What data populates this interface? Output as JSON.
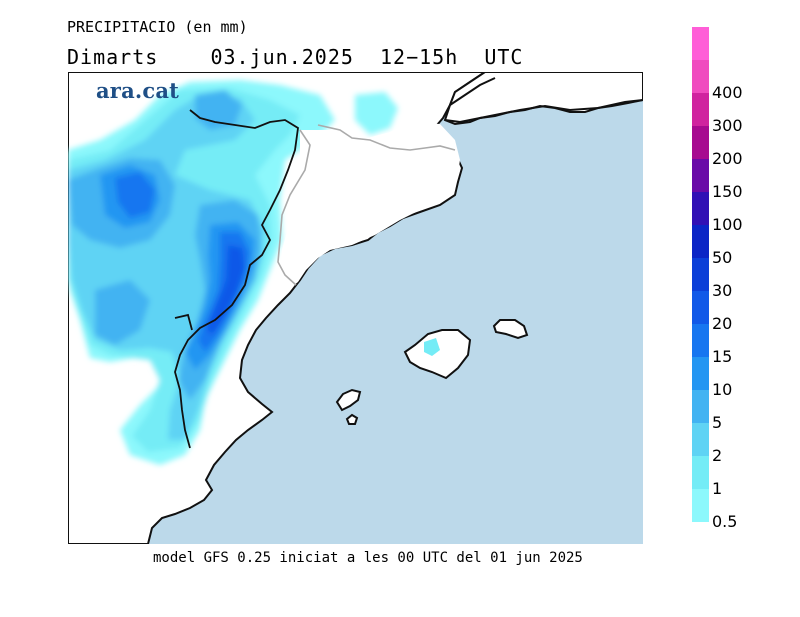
{
  "header": {
    "title": "PRECIPITACIO (en mm)",
    "subtitle": "Dimarts    03.jun.2025  12−15h  UTC"
  },
  "brand": {
    "logo_text": "ara.cat"
  },
  "footer": {
    "model_text": "model GFS 0.25 iniciat a les 00 UTC del 01 jun 2025"
  },
  "colors": {
    "sea": "#bcd9ea",
    "land": "#ffffff",
    "coast": "#111111",
    "border": "#aaaaaa"
  },
  "legend": {
    "items": [
      {
        "label": "0.5",
        "color": "#8cf8fc"
      },
      {
        "label": "1",
        "color": "#74ecf6"
      },
      {
        "label": "2",
        "color": "#5fd3f4"
      },
      {
        "label": "5",
        "color": "#42b3f2"
      },
      {
        "label": "10",
        "color": "#2496f2"
      },
      {
        "label": "15",
        "color": "#1776f0"
      },
      {
        "label": "20",
        "color": "#1159e8"
      },
      {
        "label": "30",
        "color": "#0b3fd8"
      },
      {
        "label": "50",
        "color": "#0b25c6"
      },
      {
        "label": "100",
        "color": "#3110b5"
      },
      {
        "label": "150",
        "color": "#6a0aa8"
      },
      {
        "label": "200",
        "color": "#a70a90"
      },
      {
        "label": "300",
        "color": "#d0239f"
      },
      {
        "label": "400",
        "color": "#f04bbf"
      },
      {
        "label": "",
        "color": "#ff5ed7"
      }
    ]
  }
}
